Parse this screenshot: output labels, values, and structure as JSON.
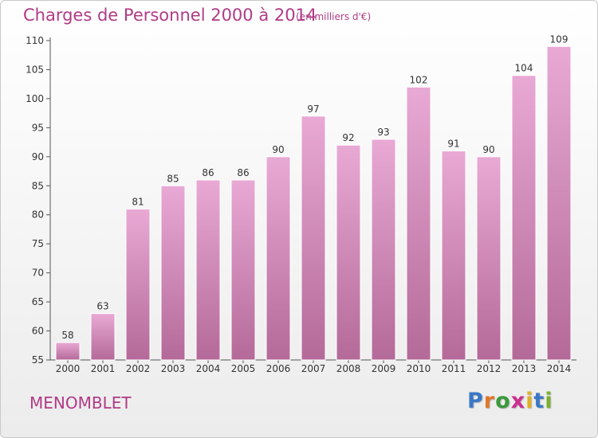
{
  "title": "Charges de Personnel 2000 à 2014",
  "subtitle": "(en milliers d'€)",
  "commune": "MENOMBLET",
  "brand": {
    "letters": [
      "P",
      "r",
      "o",
      "x",
      "i",
      "t",
      "i"
    ],
    "colors": [
      "#3a78c6",
      "#e0782a",
      "#3a9a3a",
      "#cc2f8f",
      "#e0b020",
      "#3a78c6",
      "#7ab030"
    ]
  },
  "colors": {
    "bar_top": "#e9a9d5",
    "bar_bottom": "#b46a98",
    "accent": "#b13a86"
  },
  "chart_data": {
    "type": "bar",
    "categories": [
      "2000",
      "2001",
      "2002",
      "2003",
      "2004",
      "2005",
      "2006",
      "2007",
      "2008",
      "2009",
      "2010",
      "2011",
      "2012",
      "2013",
      "2014"
    ],
    "values": [
      58,
      63,
      81,
      85,
      86,
      86,
      90,
      97,
      92,
      93,
      102,
      91,
      90,
      104,
      109
    ],
    "ylim": [
      55,
      110
    ],
    "yticks": [
      55,
      60,
      65,
      70,
      75,
      80,
      85,
      90,
      95,
      100,
      105,
      110
    ],
    "grid": false,
    "data_labels": true
  }
}
